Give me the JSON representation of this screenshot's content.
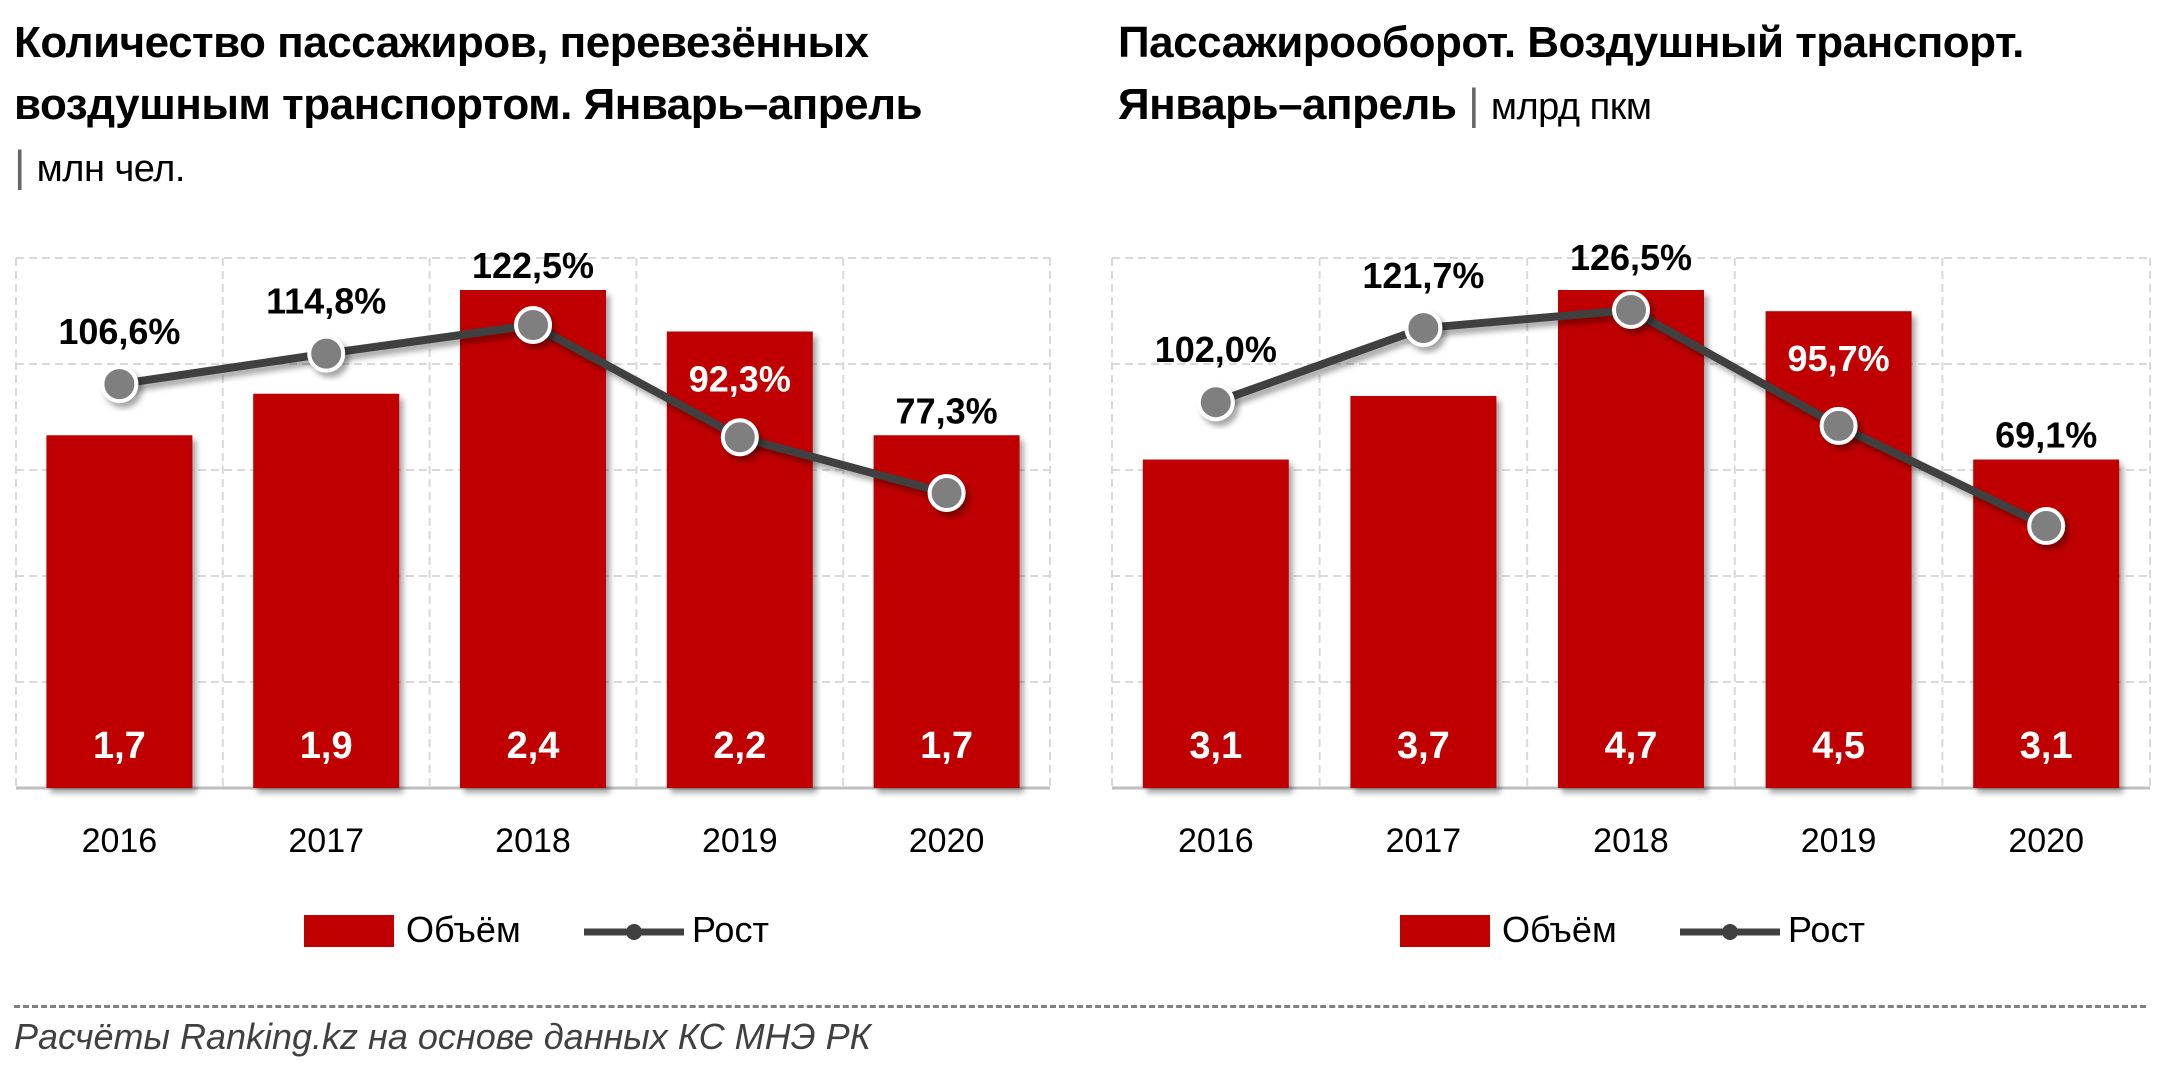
{
  "chart_data": [
    {
      "type": "bar",
      "title": "Количество пассажиров, перевезённых воздушным транспортом. Январь–апрель",
      "unit": "млн чел.",
      "categories": [
        "2016",
        "2017",
        "2018",
        "2019",
        "2020"
      ],
      "series": [
        {
          "name": "Объём",
          "type": "bar",
          "values": [
            1.7,
            1.9,
            2.4,
            2.2,
            1.7
          ],
          "labels": [
            "1,7",
            "1,9",
            "2,4",
            "2,2",
            "1,7"
          ]
        },
        {
          "name": "Рост",
          "type": "line",
          "values": [
            106.6,
            114.8,
            122.5,
            92.3,
            77.3
          ],
          "labels": [
            "106,6%",
            "114,8%",
            "122,5%",
            "92,3%",
            "77,3%"
          ]
        }
      ],
      "colors": {
        "bar": "#C00000",
        "line": "#404040"
      },
      "grid": true,
      "legend": "bottom"
    },
    {
      "type": "bar",
      "title": "Пассажирооборот. Воздушный транспорт. Январь–апрель",
      "unit": "млрд пкм",
      "categories": [
        "2016",
        "2017",
        "2018",
        "2019",
        "2020"
      ],
      "series": [
        {
          "name": "Объём",
          "type": "bar",
          "values": [
            3.1,
            3.7,
            4.7,
            4.5,
            3.1
          ],
          "labels": [
            "3,1",
            "3,7",
            "4,7",
            "4,5",
            "3,1"
          ]
        },
        {
          "name": "Рост",
          "type": "line",
          "values": [
            102.0,
            121.7,
            126.5,
            95.7,
            69.1
          ],
          "labels": [
            "102,0%",
            "121,7%",
            "126,5%",
            "95,7%",
            "69,1%"
          ]
        }
      ],
      "colors": {
        "bar": "#C00000",
        "line": "#404040"
      },
      "grid": true,
      "legend": "bottom"
    }
  ],
  "titles": {
    "left_line1": "Количество пассажиров, перевезённых",
    "left_line2": "воздушным транспортом. Январь–апрель",
    "left_unit": "млн чел.",
    "right_line1": "Пассажирооборот. Воздушный транспорт.",
    "right_line2": "Январь–апрель",
    "right_unit": "млрд пкм"
  },
  "legend": {
    "bar_label": "Объём",
    "line_label": "Рост"
  },
  "source": "Расчёты Ranking.kz на основе данных КС МНЭ РК"
}
